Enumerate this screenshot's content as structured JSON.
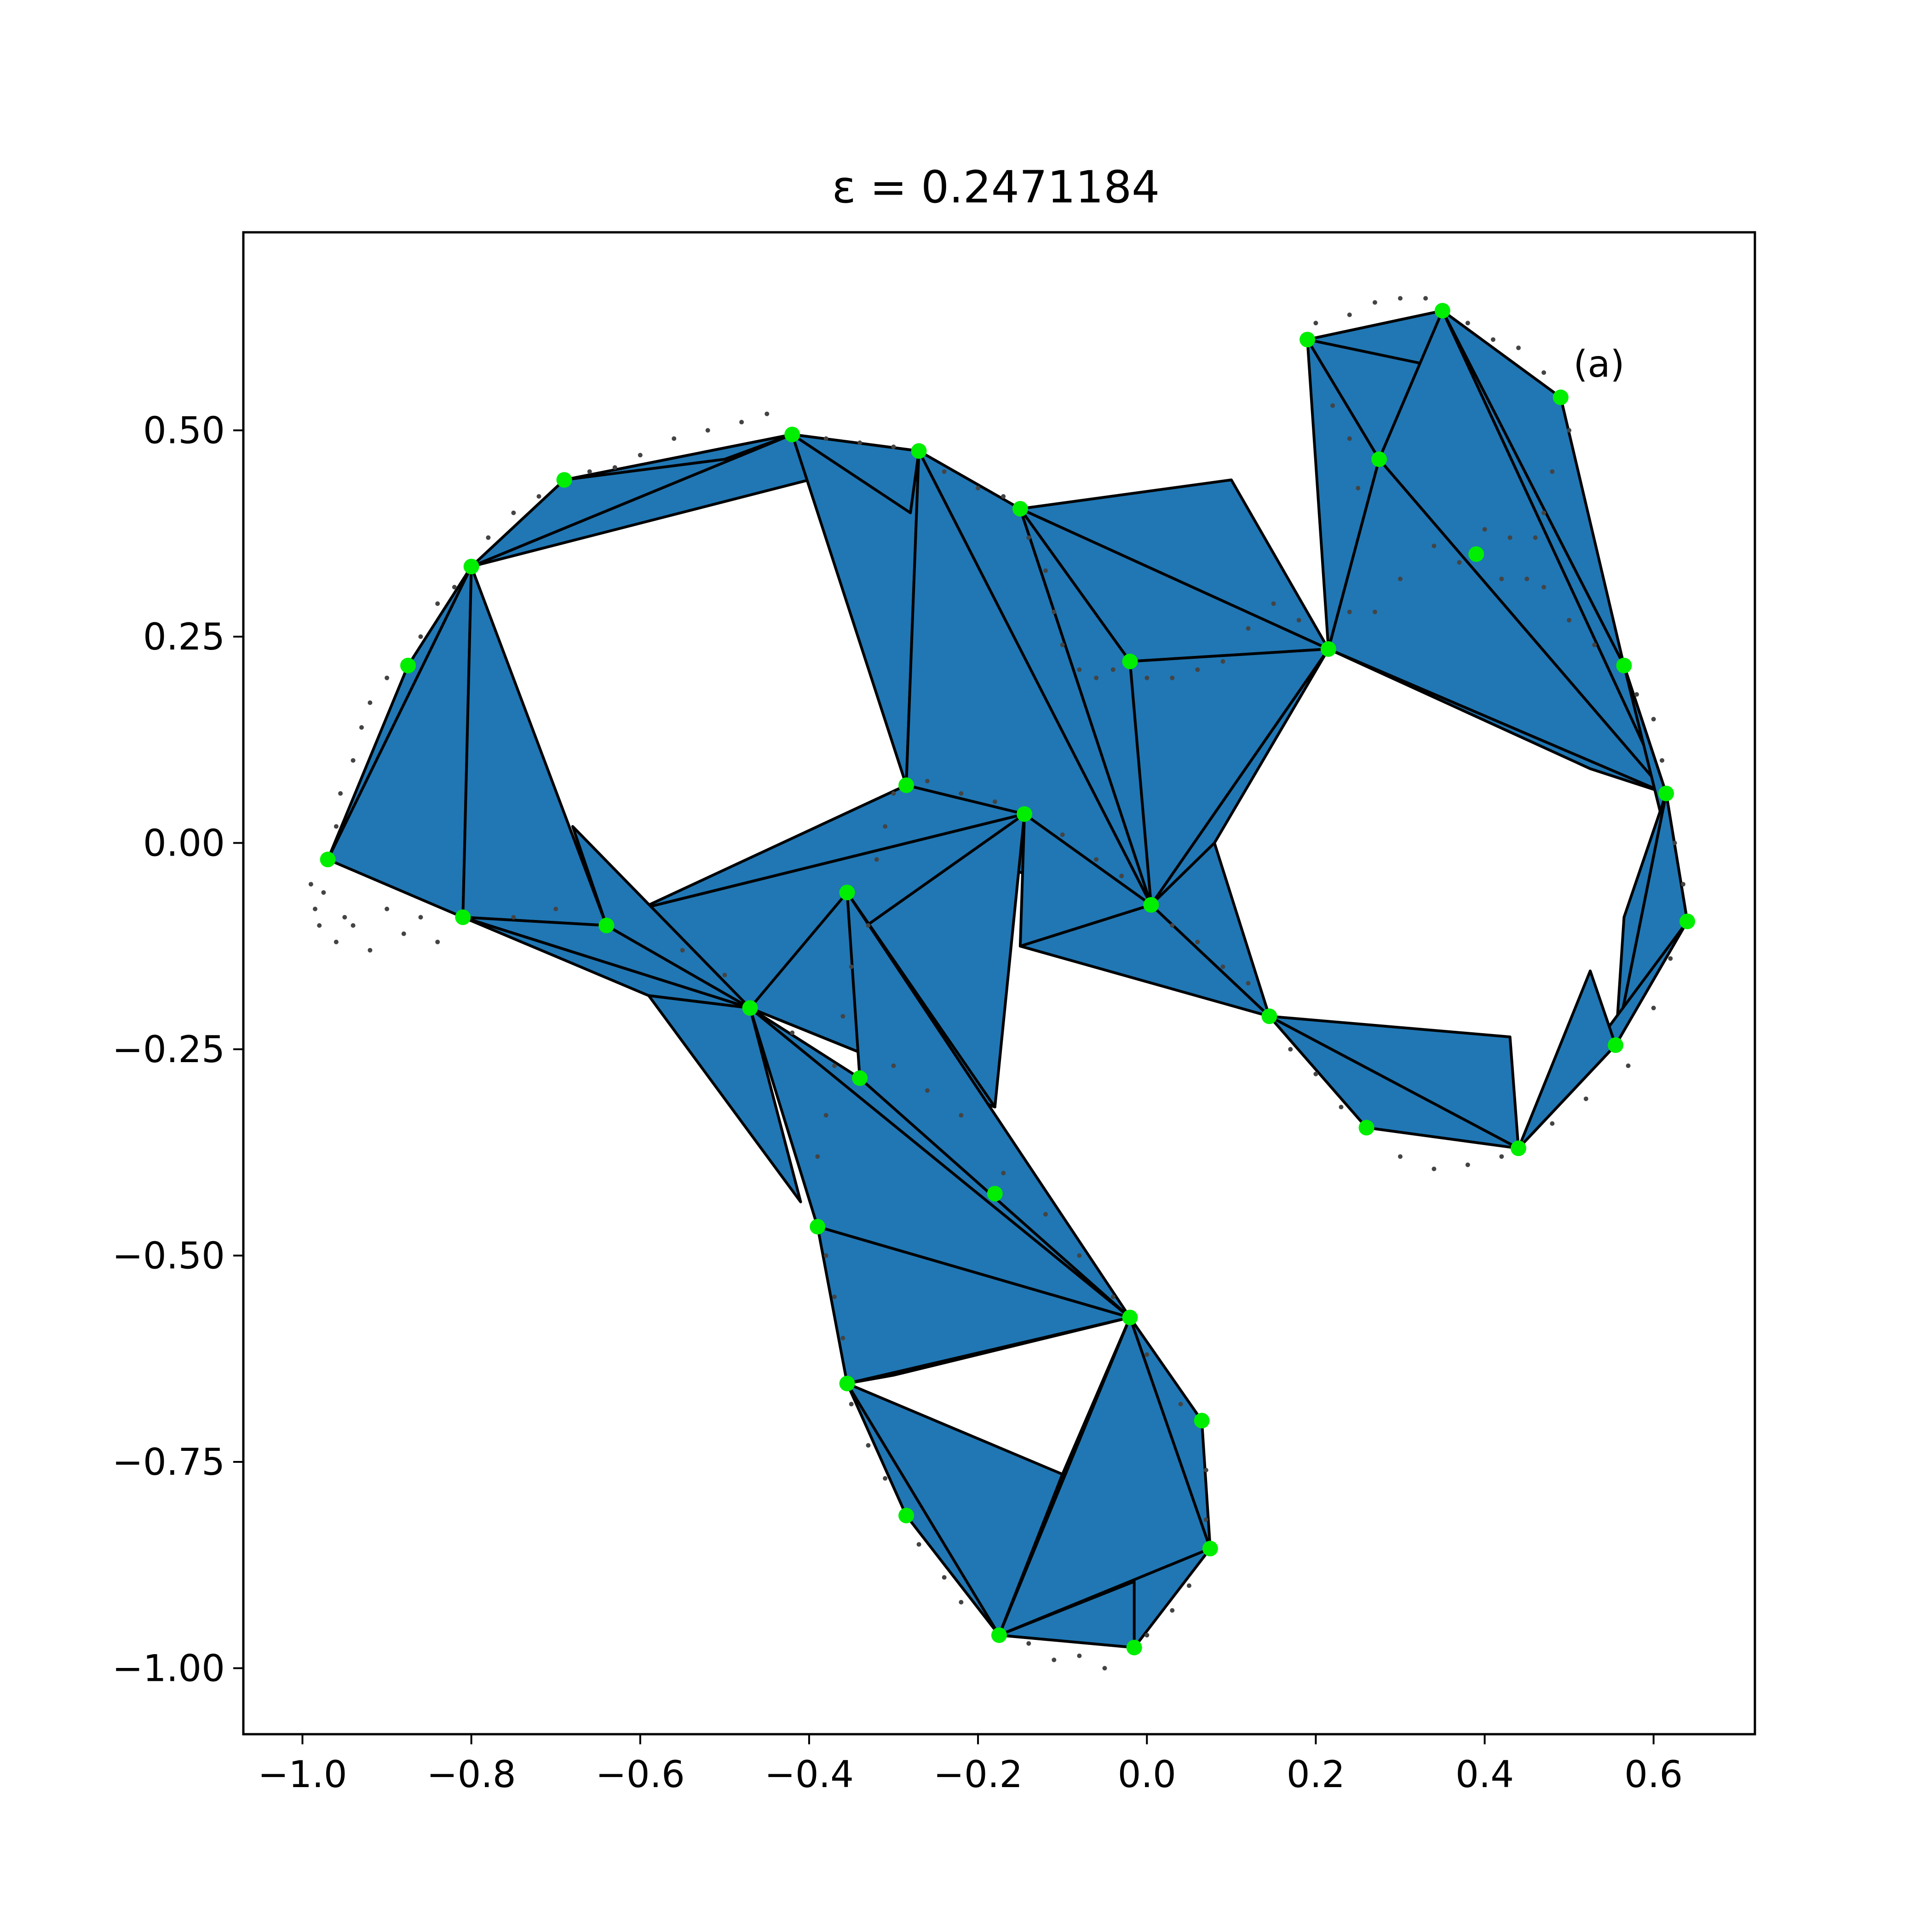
{
  "chart_data": {
    "type": "scatter",
    "title": "ε = 0.2471184",
    "xlabel": "",
    "ylabel": "",
    "xlim": [
      -1.07,
      0.72
    ],
    "ylim": [
      -1.08,
      0.74
    ],
    "x_ticks": [
      -1.0,
      -0.8,
      -0.6,
      -0.4,
      -0.2,
      0.0,
      0.2,
      0.4,
      0.6
    ],
    "x_tick_labels": [
      "−1.0",
      "−0.8",
      "−0.6",
      "−0.4",
      "−0.2",
      "0.0",
      "0.2",
      "0.4",
      "0.6"
    ],
    "y_ticks": [
      0.5,
      0.25,
      0.0,
      -0.25,
      -0.5,
      -0.75,
      -1.0
    ],
    "y_tick_labels": [
      "0.50",
      "0.25",
      "0.00",
      "−0.25",
      "−0.50",
      "−0.75",
      "−1.00"
    ],
    "annotation": {
      "text": "(a)",
      "x": 0.505,
      "y": 0.565
    },
    "colors": {
      "fill": "#2077b4",
      "edge": "#000000",
      "landmark": "#00ee00",
      "sample": "#444444"
    },
    "grid": false,
    "landmarks": [
      {
        "x": -0.97,
        "y": -0.02
      },
      {
        "x": -0.875,
        "y": 0.215
      },
      {
        "x": -0.8,
        "y": 0.335
      },
      {
        "x": -0.69,
        "y": 0.44
      },
      {
        "x": -0.42,
        "y": 0.495
      },
      {
        "x": -0.27,
        "y": 0.475
      },
      {
        "x": -0.15,
        "y": 0.405
      },
      {
        "x": -0.02,
        "y": 0.22
      },
      {
        "x": -0.285,
        "y": 0.07
      },
      {
        "x": -0.145,
        "y": 0.035
      },
      {
        "x": 0.005,
        "y": -0.075
      },
      {
        "x": -0.81,
        "y": -0.09
      },
      {
        "x": -0.64,
        "y": -0.1
      },
      {
        "x": -0.47,
        "y": -0.2
      },
      {
        "x": -0.355,
        "y": -0.06
      },
      {
        "x": -0.34,
        "y": -0.285
      },
      {
        "x": -0.18,
        "y": -0.425
      },
      {
        "x": -0.39,
        "y": -0.465
      },
      {
        "x": -0.02,
        "y": -0.575
      },
      {
        "x": -0.355,
        "y": -0.655
      },
      {
        "x": 0.065,
        "y": -0.7
      },
      {
        "x": -0.285,
        "y": -0.815
      },
      {
        "x": 0.075,
        "y": -0.855
      },
      {
        "x": -0.175,
        "y": -0.96
      },
      {
        "x": -0.015,
        "y": -0.975
      },
      {
        "x": 0.145,
        "y": -0.21
      },
      {
        "x": 0.26,
        "y": -0.345
      },
      {
        "x": 0.44,
        "y": -0.37
      },
      {
        "x": 0.555,
        "y": -0.245
      },
      {
        "x": 0.64,
        "y": -0.095
      },
      {
        "x": 0.615,
        "y": 0.06
      },
      {
        "x": 0.565,
        "y": 0.215
      },
      {
        "x": 0.215,
        "y": 0.235
      },
      {
        "x": 0.39,
        "y": 0.35
      },
      {
        "x": 0.275,
        "y": 0.465
      },
      {
        "x": 0.19,
        "y": 0.61
      },
      {
        "x": 0.35,
        "y": 0.645
      },
      {
        "x": 0.49,
        "y": 0.54
      }
    ],
    "triangles": [
      [
        [
          -0.97,
          -0.02
        ],
        [
          -0.875,
          0.215
        ],
        [
          -0.8,
          0.335
        ]
      ],
      [
        [
          -0.97,
          -0.02
        ],
        [
          -0.8,
          0.335
        ],
        [
          -0.81,
          -0.09
        ]
      ],
      [
        [
          -0.8,
          0.335
        ],
        [
          -0.81,
          -0.09
        ],
        [
          -0.64,
          -0.1
        ]
      ],
      [
        [
          -0.8,
          0.335
        ],
        [
          -0.69,
          0.44
        ],
        [
          -0.42,
          0.495
        ]
      ],
      [
        [
          -0.8,
          0.335
        ],
        [
          -0.42,
          0.495
        ],
        [
          -0.4,
          0.44
        ]
      ],
      [
        [
          -0.69,
          0.44
        ],
        [
          -0.42,
          0.495
        ],
        [
          -0.5,
          0.465
        ]
      ],
      [
        [
          -0.42,
          0.495
        ],
        [
          -0.27,
          0.475
        ],
        [
          -0.285,
          0.07
        ]
      ],
      [
        [
          -0.42,
          0.495
        ],
        [
          -0.27,
          0.475
        ],
        [
          -0.28,
          0.4
        ]
      ],
      [
        [
          -0.27,
          0.475
        ],
        [
          -0.285,
          0.07
        ],
        [
          0.005,
          -0.075
        ]
      ],
      [
        [
          -0.27,
          0.475
        ],
        [
          -0.15,
          0.405
        ],
        [
          0.005,
          -0.075
        ]
      ],
      [
        [
          -0.285,
          0.07
        ],
        [
          -0.27,
          -0.005
        ],
        [
          0.005,
          -0.075
        ]
      ],
      [
        [
          -0.15,
          0.405
        ],
        [
          -0.02,
          0.22
        ],
        [
          0.005,
          -0.075
        ]
      ],
      [
        [
          -0.15,
          0.405
        ],
        [
          0.1,
          0.44
        ],
        [
          0.215,
          0.235
        ]
      ],
      [
        [
          -0.15,
          0.405
        ],
        [
          0.215,
          0.235
        ],
        [
          -0.02,
          0.22
        ]
      ],
      [
        [
          -0.02,
          0.22
        ],
        [
          0.005,
          -0.075
        ],
        [
          0.215,
          0.235
        ]
      ],
      [
        [
          0.005,
          -0.075
        ],
        [
          0.215,
          0.235
        ],
        [
          0.08,
          0.0
        ]
      ],
      [
        [
          0.215,
          0.235
        ],
        [
          0.565,
          0.215
        ],
        [
          0.615,
          0.06
        ]
      ],
      [
        [
          0.215,
          0.235
        ],
        [
          0.615,
          0.06
        ],
        [
          0.525,
          0.09
        ]
      ],
      [
        [
          0.215,
          0.235
        ],
        [
          0.275,
          0.465
        ],
        [
          0.615,
          0.06
        ]
      ],
      [
        [
          0.19,
          0.61
        ],
        [
          0.215,
          0.235
        ],
        [
          0.275,
          0.465
        ]
      ],
      [
        [
          0.19,
          0.61
        ],
        [
          0.275,
          0.465
        ],
        [
          0.35,
          0.645
        ]
      ],
      [
        [
          0.19,
          0.61
        ],
        [
          0.35,
          0.645
        ],
        [
          0.33,
          0.58
        ]
      ],
      [
        [
          0.275,
          0.465
        ],
        [
          0.35,
          0.645
        ],
        [
          0.615,
          0.06
        ]
      ],
      [
        [
          0.35,
          0.645
        ],
        [
          0.49,
          0.54
        ],
        [
          0.565,
          0.215
        ]
      ],
      [
        [
          0.35,
          0.645
        ],
        [
          0.565,
          0.215
        ],
        [
          0.615,
          0.06
        ]
      ],
      [
        [
          0.565,
          0.215
        ],
        [
          0.615,
          0.06
        ],
        [
          0.64,
          -0.095
        ]
      ],
      [
        [
          0.615,
          0.06
        ],
        [
          0.64,
          -0.095
        ],
        [
          0.555,
          -0.245
        ]
      ],
      [
        [
          0.615,
          0.06
        ],
        [
          0.555,
          -0.245
        ],
        [
          0.565,
          -0.09
        ]
      ],
      [
        [
          0.64,
          -0.095
        ],
        [
          0.555,
          -0.245
        ],
        [
          0.44,
          -0.37
        ]
      ],
      [
        [
          0.555,
          -0.245
        ],
        [
          0.44,
          -0.37
        ],
        [
          0.525,
          -0.155
        ]
      ],
      [
        [
          0.44,
          -0.37
        ],
        [
          0.26,
          -0.345
        ],
        [
          0.145,
          -0.21
        ]
      ],
      [
        [
          0.44,
          -0.37
        ],
        [
          0.145,
          -0.21
        ],
        [
          0.43,
          -0.235
        ]
      ],
      [
        [
          0.005,
          -0.075
        ],
        [
          0.145,
          -0.21
        ],
        [
          0.08,
          0.0
        ]
      ],
      [
        [
          0.005,
          -0.075
        ],
        [
          0.145,
          -0.21
        ],
        [
          -0.15,
          -0.125
        ]
      ],
      [
        [
          -0.145,
          0.035
        ],
        [
          0.005,
          -0.075
        ],
        [
          -0.15,
          -0.125
        ]
      ],
      [
        [
          -0.285,
          0.07
        ],
        [
          -0.145,
          0.035
        ],
        [
          -0.6,
          -0.08
        ]
      ],
      [
        [
          -0.145,
          0.035
        ],
        [
          -0.6,
          -0.08
        ],
        [
          -0.47,
          -0.2
        ]
      ],
      [
        [
          -0.145,
          0.035
        ],
        [
          -0.47,
          -0.2
        ],
        [
          -0.18,
          -0.32
        ]
      ],
      [
        [
          -0.355,
          -0.06
        ],
        [
          -0.47,
          -0.2
        ],
        [
          -0.18,
          -0.32
        ]
      ],
      [
        [
          -0.81,
          -0.09
        ],
        [
          -0.64,
          -0.1
        ],
        [
          -0.47,
          -0.2
        ]
      ],
      [
        [
          -0.81,
          -0.09
        ],
        [
          -0.47,
          -0.2
        ],
        [
          -0.59,
          -0.185
        ]
      ],
      [
        [
          -0.64,
          -0.1
        ],
        [
          -0.47,
          -0.2
        ],
        [
          -0.68,
          0.02
        ]
      ],
      [
        [
          -0.59,
          -0.185
        ],
        [
          -0.47,
          -0.2
        ],
        [
          -0.41,
          -0.435
        ]
      ],
      [
        [
          -0.47,
          -0.2
        ],
        [
          -0.39,
          -0.465
        ],
        [
          -0.02,
          -0.575
        ]
      ],
      [
        [
          -0.47,
          -0.2
        ],
        [
          -0.02,
          -0.575
        ],
        [
          -0.34,
          -0.285
        ]
      ],
      [
        [
          -0.355,
          -0.06
        ],
        [
          -0.02,
          -0.575
        ],
        [
          -0.34,
          -0.285
        ]
      ],
      [
        [
          -0.39,
          -0.465
        ],
        [
          -0.355,
          -0.655
        ],
        [
          -0.02,
          -0.575
        ]
      ],
      [
        [
          -0.355,
          -0.655
        ],
        [
          -0.02,
          -0.575
        ],
        [
          -0.3,
          -0.645
        ]
      ],
      [
        [
          -0.355,
          -0.655
        ],
        [
          -0.285,
          -0.815
        ],
        [
          -0.175,
          -0.96
        ]
      ],
      [
        [
          -0.355,
          -0.655
        ],
        [
          -0.175,
          -0.96
        ],
        [
          -0.1,
          -0.765
        ]
      ],
      [
        [
          -0.175,
          -0.96
        ],
        [
          -0.02,
          -0.575
        ],
        [
          -0.1,
          -0.765
        ]
      ],
      [
        [
          -0.175,
          -0.96
        ],
        [
          -0.02,
          -0.575
        ],
        [
          0.075,
          -0.855
        ]
      ],
      [
        [
          -0.02,
          -0.575
        ],
        [
          0.065,
          -0.7
        ],
        [
          0.075,
          -0.855
        ]
      ],
      [
        [
          -0.175,
          -0.96
        ],
        [
          0.075,
          -0.855
        ],
        [
          -0.015,
          -0.975
        ]
      ],
      [
        [
          -0.175,
          -0.96
        ],
        [
          -0.015,
          -0.975
        ],
        [
          -0.015,
          -0.895
        ]
      ]
    ],
    "samples": [
      [
        -0.99,
        -0.05
      ],
      [
        -0.985,
        -0.08
      ],
      [
        -0.98,
        -0.1
      ],
      [
        -0.975,
        -0.06
      ],
      [
        -0.96,
        -0.12
      ],
      [
        -0.95,
        -0.09
      ],
      [
        -0.94,
        -0.1
      ],
      [
        -0.92,
        -0.13
      ],
      [
        -0.9,
        -0.08
      ],
      [
        -0.88,
        -0.11
      ],
      [
        -0.86,
        -0.09
      ],
      [
        -0.84,
        -0.12
      ],
      [
        -0.96,
        0.02
      ],
      [
        -0.955,
        0.06
      ],
      [
        -0.94,
        0.1
      ],
      [
        -0.93,
        0.14
      ],
      [
        -0.92,
        0.17
      ],
      [
        -0.9,
        0.2
      ],
      [
        -0.86,
        0.25
      ],
      [
        -0.84,
        0.29
      ],
      [
        -0.82,
        0.31
      ],
      [
        -0.78,
        0.37
      ],
      [
        -0.75,
        0.4
      ],
      [
        -0.72,
        0.42
      ],
      [
        -0.66,
        0.45
      ],
      [
        -0.63,
        0.455
      ],
      [
        -0.6,
        0.47
      ],
      [
        -0.56,
        0.49
      ],
      [
        -0.52,
        0.5
      ],
      [
        -0.48,
        0.51
      ],
      [
        -0.45,
        0.52
      ],
      [
        -0.38,
        0.49
      ],
      [
        -0.34,
        0.485
      ],
      [
        -0.3,
        0.48
      ],
      [
        -0.24,
        0.45
      ],
      [
        -0.2,
        0.43
      ],
      [
        -0.17,
        0.42
      ],
      [
        -0.14,
        0.37
      ],
      [
        -0.12,
        0.33
      ],
      [
        -0.11,
        0.28
      ],
      [
        -0.1,
        0.24
      ],
      [
        -0.08,
        0.21
      ],
      [
        -0.06,
        0.2
      ],
      [
        -0.04,
        0.21
      ],
      [
        0.0,
        0.2
      ],
      [
        0.03,
        0.2
      ],
      [
        0.06,
        0.21
      ],
      [
        0.09,
        0.22
      ],
      [
        0.12,
        0.26
      ],
      [
        0.15,
        0.29
      ],
      [
        0.18,
        0.27
      ],
      [
        0.24,
        0.28
      ],
      [
        0.27,
        0.28
      ],
      [
        0.3,
        0.32
      ],
      [
        0.34,
        0.36
      ],
      [
        0.37,
        0.34
      ],
      [
        0.42,
        0.32
      ],
      [
        0.45,
        0.32
      ],
      [
        0.47,
        0.31
      ],
      [
        0.5,
        0.27
      ],
      [
        0.53,
        0.24
      ],
      [
        0.58,
        0.18
      ],
      [
        0.6,
        0.15
      ],
      [
        0.61,
        0.1
      ],
      [
        0.625,
        0.0
      ],
      [
        0.635,
        -0.05
      ],
      [
        0.62,
        -0.14
      ],
      [
        0.6,
        -0.2
      ],
      [
        0.57,
        -0.27
      ],
      [
        0.52,
        -0.31
      ],
      [
        0.48,
        -0.34
      ],
      [
        0.42,
        -0.38
      ],
      [
        0.38,
        -0.39
      ],
      [
        0.34,
        -0.395
      ],
      [
        0.3,
        -0.38
      ],
      [
        0.23,
        -0.32
      ],
      [
        0.2,
        -0.28
      ],
      [
        0.17,
        -0.25
      ],
      [
        0.12,
        -0.17
      ],
      [
        0.09,
        -0.15
      ],
      [
        0.06,
        -0.12
      ],
      [
        0.03,
        -0.1
      ],
      [
        -0.03,
        -0.04
      ],
      [
        -0.06,
        -0.02
      ],
      [
        -0.1,
        0.01
      ],
      [
        -0.18,
        0.05
      ],
      [
        -0.22,
        0.06
      ],
      [
        -0.26,
        0.075
      ],
      [
        -0.3,
        0.06
      ],
      [
        -0.31,
        0.02
      ],
      [
        -0.32,
        -0.02
      ],
      [
        -0.33,
        -0.1
      ],
      [
        -0.35,
        -0.15
      ],
      [
        -0.36,
        -0.21
      ],
      [
        -0.37,
        -0.27
      ],
      [
        -0.38,
        -0.33
      ],
      [
        -0.39,
        -0.38
      ],
      [
        -0.38,
        -0.5
      ],
      [
        -0.37,
        -0.55
      ],
      [
        -0.36,
        -0.6
      ],
      [
        -0.35,
        -0.68
      ],
      [
        -0.33,
        -0.73
      ],
      [
        -0.31,
        -0.77
      ],
      [
        -0.27,
        -0.85
      ],
      [
        -0.24,
        -0.89
      ],
      [
        -0.22,
        -0.92
      ],
      [
        -0.14,
        -0.97
      ],
      [
        -0.11,
        -0.99
      ],
      [
        -0.08,
        -0.985
      ],
      [
        -0.05,
        -1.0
      ],
      [
        0.0,
        -0.96
      ],
      [
        0.03,
        -0.93
      ],
      [
        0.05,
        -0.9
      ],
      [
        0.07,
        -0.82
      ],
      [
        0.07,
        -0.76
      ],
      [
        0.04,
        -0.68
      ],
      [
        0.0,
        -0.62
      ],
      [
        -0.04,
        -0.55
      ],
      [
        -0.08,
        -0.5
      ],
      [
        -0.12,
        -0.45
      ],
      [
        -0.17,
        -0.4
      ],
      [
        -0.22,
        -0.33
      ],
      [
        -0.26,
        -0.3
      ],
      [
        -0.3,
        -0.27
      ],
      [
        -0.42,
        -0.23
      ],
      [
        -0.5,
        -0.16
      ],
      [
        -0.55,
        -0.13
      ],
      [
        -0.7,
        -0.08
      ],
      [
        -0.75,
        -0.09
      ],
      [
        0.2,
        0.63
      ],
      [
        0.24,
        0.64
      ],
      [
        0.27,
        0.655
      ],
      [
        0.3,
        0.66
      ],
      [
        0.33,
        0.66
      ],
      [
        0.38,
        0.63
      ],
      [
        0.41,
        0.61
      ],
      [
        0.44,
        0.6
      ],
      [
        0.47,
        0.57
      ],
      [
        0.5,
        0.5
      ],
      [
        0.48,
        0.45
      ],
      [
        0.47,
        0.4
      ],
      [
        0.46,
        0.37
      ],
      [
        0.43,
        0.37
      ],
      [
        0.4,
        0.38
      ],
      [
        0.22,
        0.53
      ],
      [
        0.24,
        0.49
      ],
      [
        0.25,
        0.43
      ]
    ]
  }
}
